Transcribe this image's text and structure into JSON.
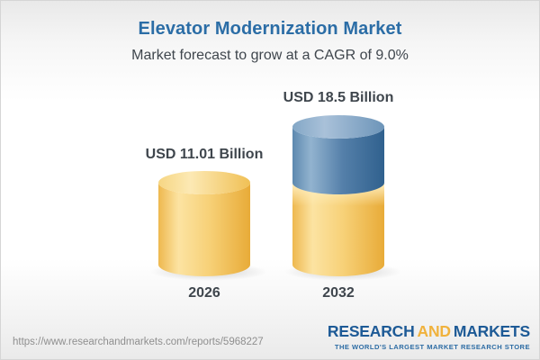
{
  "chart_data": {
    "type": "bar",
    "variant": "3d-cylinder",
    "title": "Elevator Modernization Market",
    "subtitle": "Market forecast to grow at a CAGR of 9.0%",
    "cagr": "9.0%",
    "unit": "USD Billion",
    "categories": [
      "2026",
      "2032"
    ],
    "values": [
      11.01,
      18.5
    ],
    "value_labels": [
      "USD 11.01 Billion",
      "USD 18.5 Billion"
    ],
    "ylim": [
      0,
      18.5
    ],
    "grid": false,
    "legend": "none",
    "bars": [
      {
        "category": "2026",
        "value": 11.01,
        "label": "USD 11.01 Billion",
        "segments": [
          {
            "name": "base",
            "value": 11.01,
            "palette": "gold"
          }
        ]
      },
      {
        "category": "2032",
        "value": 18.5,
        "label": "USD 18.5 Billion",
        "segments": [
          {
            "name": "base",
            "value": 11.01,
            "palette": "gold"
          },
          {
            "name": "growth",
            "value": 7.49,
            "palette": "blue"
          }
        ]
      }
    ],
    "palette": {
      "gold": {
        "body": [
          [
            "0%",
            "#eeb84e"
          ],
          [
            "22%",
            "#fce3a2"
          ],
          [
            "55%",
            "#f7d178"
          ],
          [
            "100%",
            "#e8ab38"
          ]
        ],
        "top": [
          [
            "0%",
            "#f6d683"
          ],
          [
            "35%",
            "#fce9b4"
          ],
          [
            "100%",
            "#f0c055"
          ]
        ],
        "rim": "#ffedbc"
      },
      "blue": {
        "body": [
          [
            "0%",
            "#5d89af"
          ],
          [
            "20%",
            "#92b3cf"
          ],
          [
            "55%",
            "#547fa9"
          ],
          [
            "100%",
            "#30618e"
          ]
        ],
        "top": [
          [
            "0%",
            "#83a7c6"
          ],
          [
            "35%",
            "#a9c1d9"
          ],
          [
            "100%",
            "#6d95b9"
          ]
        ],
        "rim": "#d8e6f2"
      }
    }
  },
  "footer": {
    "url": "https://www.researchandmarkets.com/reports/5968227",
    "logo": {
      "part1": "RESEARCH",
      "part2": "AND",
      "part3": "MARKETS",
      "tagline": "THE WORLD'S LARGEST MARKET RESEARCH STORE"
    }
  },
  "colors": {
    "title_blue": "#2b6da6",
    "text_dark": "#3f464d",
    "url_gray": "#8f8f8f",
    "logo_blue": "#1d5a96",
    "logo_gold": "#f0b23d",
    "tagline_blue": "#2d6ca4"
  }
}
